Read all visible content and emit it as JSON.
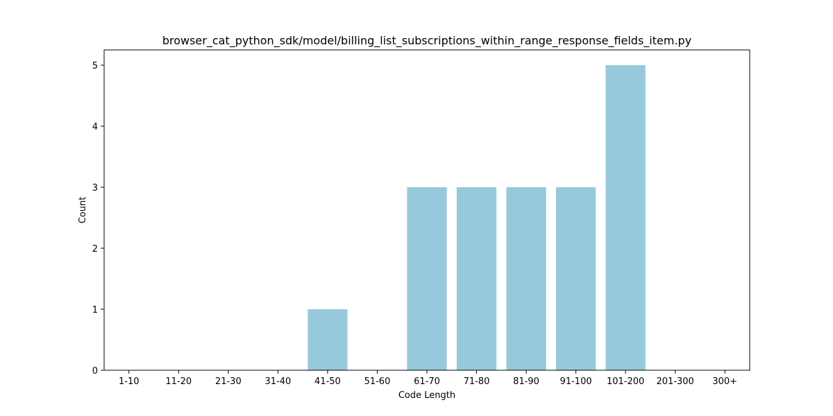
{
  "chart_data": {
    "type": "bar",
    "title": "browser_cat_python_sdk/model/billing_list_subscriptions_within_range_response_fields_item.py",
    "xlabel": "Code Length",
    "ylabel": "Count",
    "categories": [
      "1-10",
      "11-20",
      "21-30",
      "31-40",
      "41-50",
      "51-60",
      "61-70",
      "71-80",
      "81-90",
      "91-100",
      "101-200",
      "201-300",
      "300+"
    ],
    "values": [
      0,
      0,
      0,
      0,
      1,
      0,
      3,
      3,
      3,
      3,
      5,
      0,
      0
    ],
    "yticks": [
      "0",
      "1",
      "2",
      "3",
      "4",
      "5"
    ],
    "ylim": [
      0,
      5.25
    ],
    "grid": false,
    "bar_color": "#96c9dc"
  }
}
